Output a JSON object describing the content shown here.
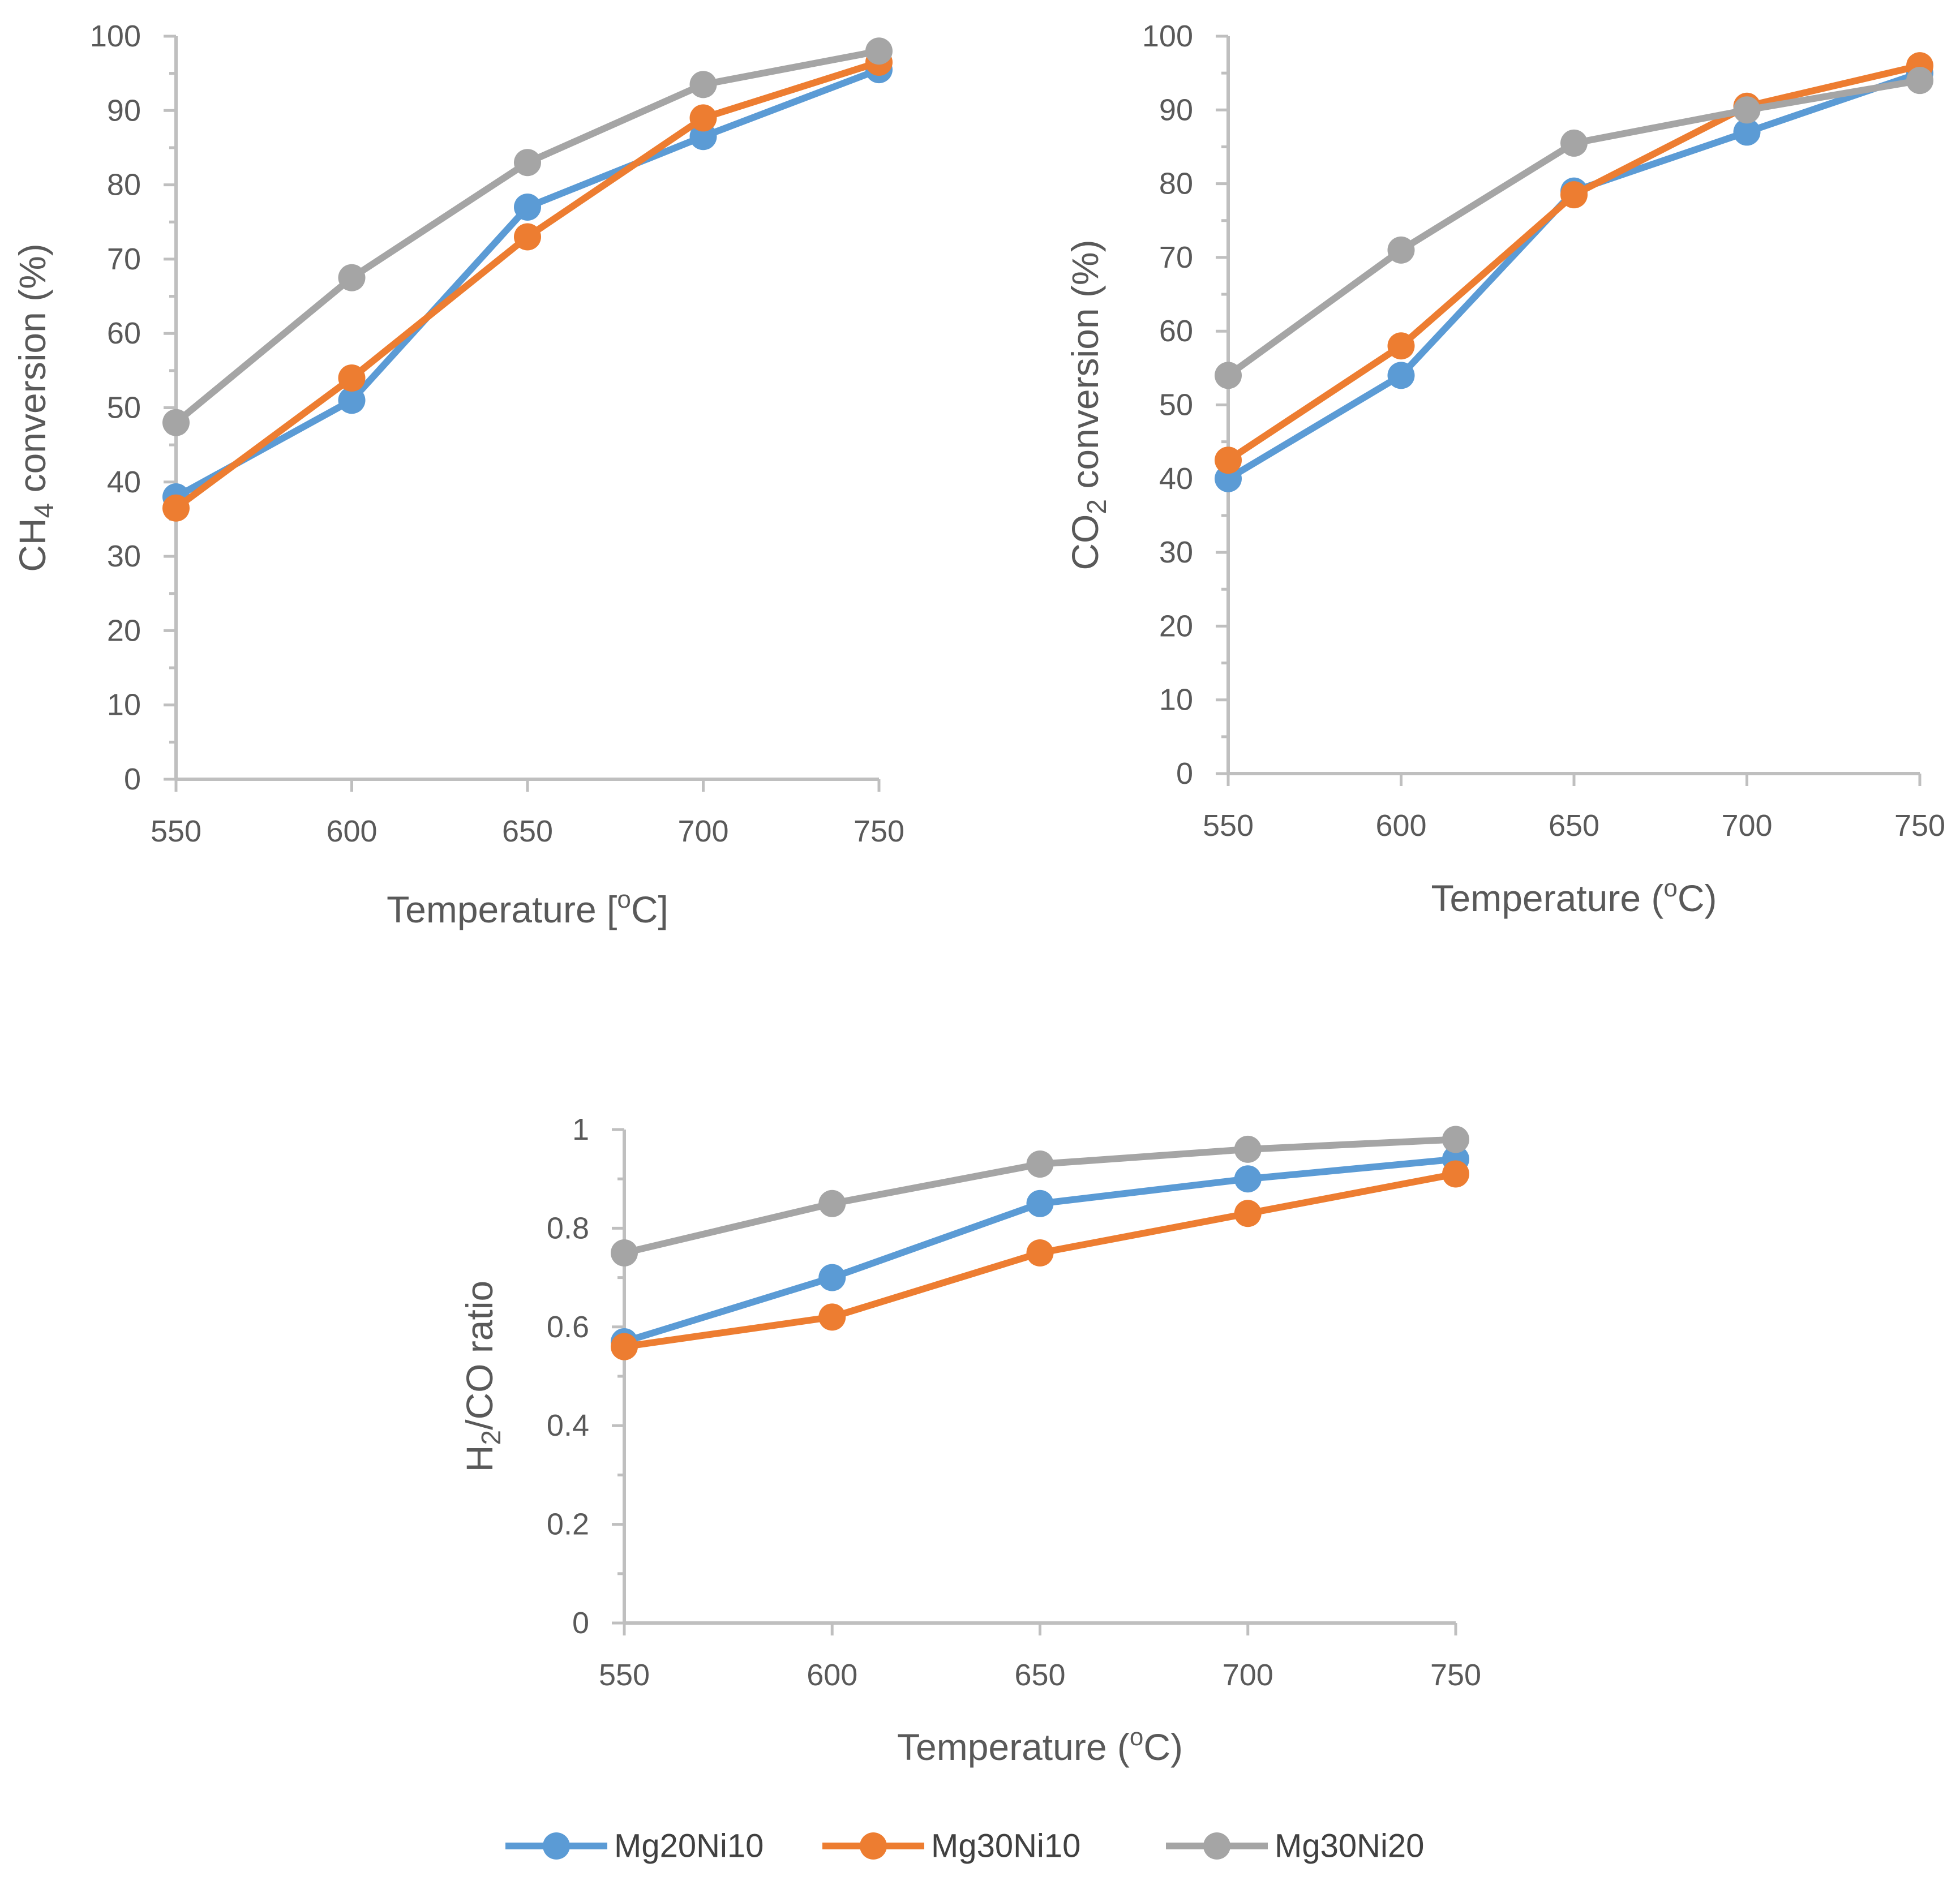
{
  "colors": {
    "Mg20Ni10": "#5b9bd5",
    "Mg30Ni10": "#ed7d31",
    "Mg30Ni20": "#a5a5a5",
    "axis": "#bfbfbf",
    "text": "#595959"
  },
  "legend": {
    "entries": [
      "Mg20Ni10",
      "Mg30Ni10",
      "Mg30Ni20"
    ],
    "position": "bottom-center"
  },
  "chart_data": [
    {
      "type": "line",
      "title": "",
      "xlabel": "Temperature [oC]",
      "xlabel_parts": {
        "before": "Temperature [",
        "sup": "o",
        "after": "C]"
      },
      "ylabel": "CH4 conversion (%)",
      "ylabel_parts": {
        "before": "CH",
        "sub": "4",
        "after": " conversion (%)"
      },
      "x": [
        550,
        600,
        650,
        700,
        750
      ],
      "x_ticks": [
        "550",
        "600",
        "650",
        "700",
        "750"
      ],
      "ylim": [
        0,
        100
      ],
      "y_ticks": [
        "0",
        "10",
        "20",
        "30",
        "40",
        "50",
        "60",
        "70",
        "80",
        "90",
        "100"
      ],
      "grid": false,
      "series": [
        {
          "name": "Mg20Ni10",
          "values": [
            38,
            51,
            77,
            86.5,
            95.5
          ]
        },
        {
          "name": "Mg30Ni10",
          "values": [
            36.5,
            54,
            73,
            89,
            96.5
          ]
        },
        {
          "name": "Mg30Ni20",
          "values": [
            48,
            67.5,
            83,
            93.5,
            98
          ]
        }
      ]
    },
    {
      "type": "line",
      "title": "",
      "xlabel": "Temperature (oC)",
      "xlabel_parts": {
        "before": "Temperature (",
        "sup": "o",
        "after": "C)"
      },
      "ylabel": "CO2 conversion (%)",
      "ylabel_parts": {
        "before": "CO",
        "sub": "2",
        "after": " conversion (%)"
      },
      "x": [
        550,
        600,
        650,
        700,
        750
      ],
      "x_ticks": [
        "550",
        "600",
        "650",
        "700",
        "750"
      ],
      "ylim": [
        0,
        100
      ],
      "y_ticks": [
        "0",
        "10",
        "20",
        "30",
        "40",
        "50",
        "60",
        "70",
        "80",
        "90",
        "100"
      ],
      "grid": false,
      "series": [
        {
          "name": "Mg20Ni10",
          "values": [
            40,
            54,
            79,
            87,
            95
          ]
        },
        {
          "name": "Mg30Ni10",
          "values": [
            42.5,
            58,
            78.5,
            90.5,
            96
          ]
        },
        {
          "name": "Mg30Ni20",
          "values": [
            54,
            71,
            85.5,
            90,
            94
          ]
        }
      ]
    },
    {
      "type": "line",
      "title": "",
      "xlabel": "Temperature (oC)",
      "xlabel_parts": {
        "before": "Temperature (",
        "sup": "o",
        "after": "C)"
      },
      "ylabel": "H2/CO ratio",
      "ylabel_parts": {
        "before": "H",
        "sub": "2",
        "after": "/CO ratio"
      },
      "x": [
        550,
        600,
        650,
        700,
        750
      ],
      "x_ticks": [
        "550",
        "600",
        "650",
        "700",
        "750"
      ],
      "ylim": [
        0,
        1
      ],
      "y_ticks": [
        "0",
        "0.2",
        "0.4",
        "0.6",
        "0.8",
        "1"
      ],
      "grid": false,
      "series": [
        {
          "name": "Mg20Ni10",
          "values": [
            0.57,
            0.7,
            0.85,
            0.9,
            0.94
          ]
        },
        {
          "name": "Mg30Ni10",
          "values": [
            0.56,
            0.62,
            0.75,
            0.83,
            0.91
          ]
        },
        {
          "name": "Mg30Ni20",
          "values": [
            0.75,
            0.85,
            0.93,
            0.96,
            0.98
          ]
        }
      ]
    }
  ]
}
